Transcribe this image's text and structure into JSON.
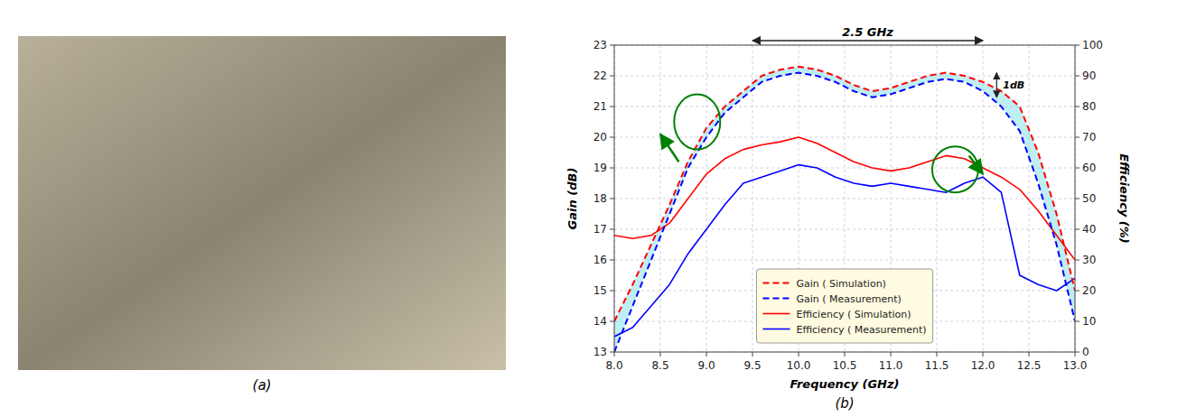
{
  "chart_data": {
    "type": "line",
    "xlabel": "Frequency (GHz)",
    "ylabel": "Gain (dB)",
    "y2label": "Efficiency (%)",
    "x": [
      8.0,
      8.2,
      8.4,
      8.6,
      8.8,
      9.0,
      9.2,
      9.4,
      9.6,
      9.8,
      10.0,
      10.2,
      10.4,
      10.6,
      10.8,
      11.0,
      11.2,
      11.4,
      11.6,
      11.8,
      12.0,
      12.2,
      12.4,
      12.6,
      12.8,
      13.0
    ],
    "series": [
      {
        "name": "Gain ( Simulation)",
        "color": "#FF0000",
        "line_style": "dashed",
        "values": [
          14.0,
          15.2,
          16.5,
          17.8,
          19.2,
          20.3,
          21.0,
          21.5,
          22.0,
          22.2,
          22.3,
          22.2,
          22.0,
          21.7,
          21.5,
          21.6,
          21.8,
          22.0,
          22.1,
          22.0,
          21.8,
          21.5,
          21.0,
          19.5,
          17.5,
          15.0
        ]
      },
      {
        "name": "Gain ( Measurement)",
        "color": "#0000FF",
        "line_style": "dashed",
        "values": [
          13.0,
          14.5,
          16.0,
          17.5,
          19.0,
          20.0,
          20.8,
          21.3,
          21.8,
          22.0,
          22.1,
          22.0,
          21.8,
          21.5,
          21.3,
          21.4,
          21.6,
          21.8,
          21.9,
          21.8,
          21.5,
          21.0,
          20.2,
          18.5,
          16.5,
          14.0
        ]
      },
      {
        "name": "Efficiency ( Simulation)",
        "color": "#FF0000",
        "line_style": "solid",
        "axis": "y2",
        "values": [
          38.0,
          37.0,
          38.0,
          42.0,
          50.0,
          58.0,
          63.0,
          66.0,
          67.5,
          68.5,
          70.0,
          68.0,
          65.0,
          62.0,
          60.0,
          59.0,
          60.0,
          62.0,
          64.0,
          63.0,
          60.0,
          57.0,
          53.0,
          46.0,
          38.0,
          30.0
        ]
      },
      {
        "name": "Efficiency ( Measurement)",
        "color": "#0000FF",
        "line_style": "solid",
        "axis": "y2",
        "values": [
          5.0,
          8.0,
          15.0,
          22.0,
          32.0,
          40.0,
          48.0,
          55.0,
          57.0,
          59.0,
          61.0,
          60.0,
          57.0,
          55.0,
          54.0,
          55.0,
          54.0,
          53.0,
          52.0,
          55.0,
          57.0,
          52.0,
          25.0,
          22.0,
          20.0,
          24.0
        ]
      }
    ],
    "xlim": [
      8.0,
      13.0
    ],
    "xticks": [
      {
        "value": 8.0,
        "label": "8.0"
      },
      8.5,
      {
        "value": 9.0,
        "label": "9.0"
      },
      9.5,
      {
        "value": 10.0,
        "label": "10.0"
      },
      10.5,
      {
        "value": 11.0,
        "label": "11.0"
      },
      11.5,
      {
        "value": 12.0,
        "label": "12.0"
      },
      12.5,
      {
        "value": 13.0,
        "label": "13.0"
      }
    ],
    "ylim": [
      13,
      23
    ],
    "yticks": [
      13,
      14,
      15,
      16,
      17,
      18,
      19,
      20,
      21,
      22,
      23
    ],
    "y2lim": [
      0,
      100
    ],
    "y2ticks": [
      0,
      10,
      20,
      30,
      40,
      50,
      60,
      70,
      80,
      90,
      100
    ],
    "grid": true,
    "legend": "lower center",
    "annotations": [
      {
        "type": "span",
        "text": "2.5 GHz",
        "x": [
          9.5,
          12.0
        ],
        "y": 23.15
      },
      {
        "type": "span",
        "text": "1dB",
        "x": 12.15,
        "y": [
          21.3,
          22.1
        ]
      },
      {
        "type": "ellipse",
        "x": 8.9,
        "y": 20.5,
        "width": 0.5,
        "height": 1.8,
        "color": "green"
      },
      {
        "type": "ellipse",
        "x": 11.7,
        "y": 18.95,
        "width": 0.5,
        "height": 1.5,
        "color": "green"
      },
      {
        "type": "arrow",
        "x": [
          8.7,
          8.5
        ],
        "y": [
          19.2,
          20.1
        ],
        "color": "green"
      },
      {
        "type": "arrow",
        "x": [
          11.85,
          12.0
        ],
        "y": [
          19.4,
          18.8
        ],
        "color": "green"
      },
      {
        "type": "panel_label",
        "text": "(a)"
      },
      {
        "type": "panel_label",
        "text": "(b)"
      }
    ]
  }
}
